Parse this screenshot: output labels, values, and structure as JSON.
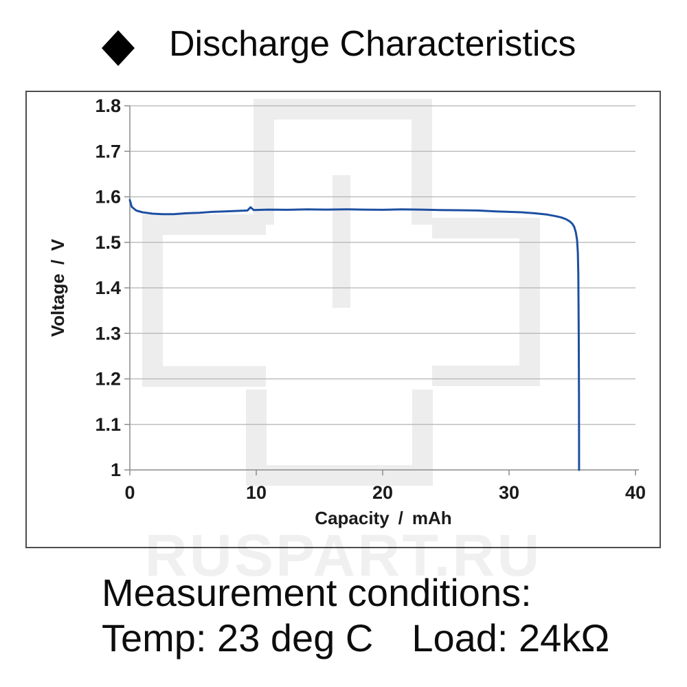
{
  "title": {
    "bullet_icon": "diamond-icon"
  },
  "watermark": {
    "text": "RUSPART.RU"
  },
  "conditions": {
    "heading": "Measurement conditions:",
    "line": "Temp: 23 deg C  Load: 24kΩ"
  },
  "colors": {
    "curve": "#1d4fa1",
    "grid": "#b3b3b3",
    "axis": "#8c8c8c",
    "panel_border": "#4d4d4d",
    "watermark_logo": "#ededed",
    "text": "#1a1a1a"
  },
  "chart_data": {
    "type": "line",
    "title": "Discharge Characteristics",
    "xlabel": "Capacity / mAh",
    "ylabel": "Voltage / V",
    "xlim": [
      0,
      40
    ],
    "ylim": [
      1.0,
      1.8
    ],
    "x_ticks": [
      0,
      10,
      20,
      30,
      40
    ],
    "y_ticks": [
      "1.8",
      "1.7",
      "1.6",
      "1.5",
      "1.4",
      "1.3",
      "1.2",
      "1.1",
      "1"
    ],
    "grid": true,
    "legend": "none",
    "series": [
      {
        "name": "discharge-curve",
        "points": [
          [
            0,
            1.593
          ],
          [
            0.15,
            1.578
          ],
          [
            0.5,
            1.57
          ],
          [
            1.0,
            1.566
          ],
          [
            1.8,
            1.563
          ],
          [
            2.6,
            1.562
          ],
          [
            3.5,
            1.562
          ],
          [
            4.5,
            1.564
          ],
          [
            5.5,
            1.565
          ],
          [
            6.5,
            1.567
          ],
          [
            7.5,
            1.568
          ],
          [
            8.5,
            1.569
          ],
          [
            9.3,
            1.57
          ],
          [
            9.55,
            1.577
          ],
          [
            9.8,
            1.571
          ],
          [
            11,
            1.572
          ],
          [
            12.5,
            1.5715
          ],
          [
            14,
            1.5725
          ],
          [
            15.5,
            1.572
          ],
          [
            17,
            1.5725
          ],
          [
            18.5,
            1.572
          ],
          [
            20,
            1.5715
          ],
          [
            21.5,
            1.5725
          ],
          [
            23,
            1.572
          ],
          [
            24.5,
            1.571
          ],
          [
            26,
            1.5705
          ],
          [
            27.5,
            1.57
          ],
          [
            29,
            1.568
          ],
          [
            30,
            1.567
          ],
          [
            31,
            1.566
          ],
          [
            32,
            1.564
          ],
          [
            33,
            1.561
          ],
          [
            33.6,
            1.558
          ],
          [
            34.1,
            1.555
          ],
          [
            34.5,
            1.551
          ],
          [
            34.8,
            1.546
          ],
          [
            35.0,
            1.541
          ],
          [
            35.15,
            1.534
          ],
          [
            35.28,
            1.522
          ],
          [
            35.38,
            1.505
          ],
          [
            35.44,
            1.478
          ],
          [
            35.48,
            1.43
          ],
          [
            35.51,
            1.3
          ],
          [
            35.53,
            1.15
          ],
          [
            35.54,
            1.0
          ]
        ]
      }
    ]
  }
}
